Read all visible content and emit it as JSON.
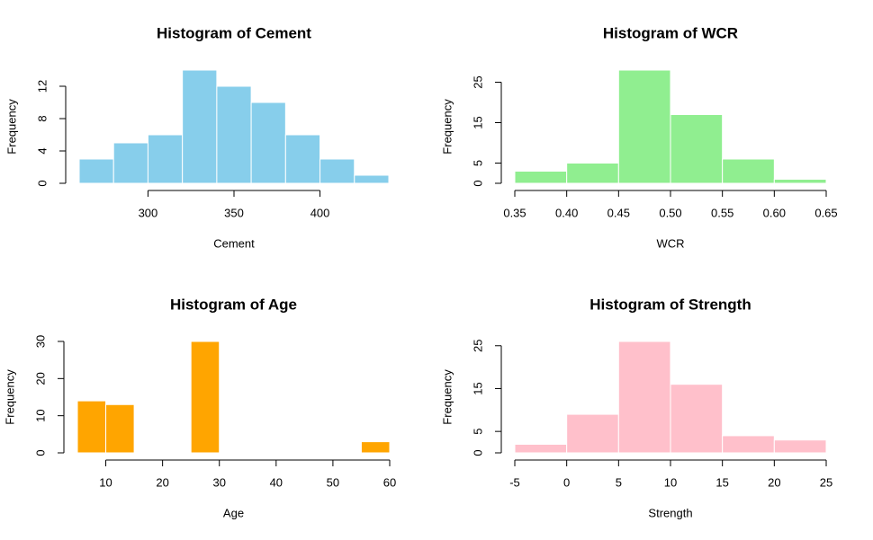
{
  "chart_data": [
    {
      "type": "histogram",
      "title": "Histogram of Cement",
      "xlabel": "Cement",
      "ylabel": "Frequency",
      "bins": [
        260,
        280,
        300,
        320,
        340,
        360,
        380,
        400,
        420,
        440
      ],
      "values": [
        3,
        5,
        6,
        14,
        12,
        10,
        6,
        3,
        1
      ],
      "color": "#87ceeb",
      "xlim": [
        260,
        440
      ],
      "ylim": [
        0,
        14
      ],
      "xticks": [
        300,
        350,
        400
      ],
      "yticks": [
        0,
        4,
        8,
        12
      ]
    },
    {
      "type": "histogram",
      "title": "Histogram of WCR",
      "xlabel": "WCR",
      "ylabel": "Frequency",
      "bins": [
        0.35,
        0.4,
        0.45,
        0.5,
        0.55,
        0.6,
        0.65
      ],
      "values": [
        3,
        5,
        28,
        17,
        6,
        1
      ],
      "color": "#90ee90",
      "xlim": [
        0.35,
        0.65
      ],
      "ylim": [
        0,
        28
      ],
      "xticks": [
        0.35,
        {
          "value": 0.4,
          "label": "0.40"
        },
        0.45,
        {
          "value": 0.5,
          "label": "0.50"
        },
        0.55,
        {
          "value": 0.6,
          "label": "0.60"
        },
        0.65
      ],
      "yticks": [
        0,
        5,
        15,
        25
      ]
    },
    {
      "type": "histogram",
      "title": "Histogram of Age",
      "xlabel": "Age",
      "ylabel": "Frequency",
      "bins": [
        5,
        10,
        15,
        20,
        25,
        30,
        35,
        40,
        45,
        50,
        55,
        60
      ],
      "values": [
        14,
        13,
        0,
        0,
        30,
        0,
        0,
        0,
        0,
        0,
        3
      ],
      "color": "#ffa500",
      "xlim": [
        5,
        60
      ],
      "ylim": [
        0,
        30
      ],
      "xticks": [
        10,
        20,
        30,
        40,
        50,
        60
      ],
      "yticks": [
        0,
        10,
        20,
        30
      ]
    },
    {
      "type": "histogram",
      "title": "Histogram of Strength",
      "xlabel": "Strength",
      "ylabel": "Frequency",
      "bins": [
        -5,
        0,
        5,
        10,
        15,
        20,
        25
      ],
      "values": [
        2,
        9,
        26,
        16,
        4,
        3
      ],
      "color": "#ffc0cb",
      "xlim": [
        -5,
        25
      ],
      "ylim": [
        0,
        26
      ],
      "xticks": [
        -5,
        0,
        5,
        10,
        15,
        20,
        25
      ],
      "yticks": [
        0,
        5,
        15,
        25
      ]
    }
  ]
}
